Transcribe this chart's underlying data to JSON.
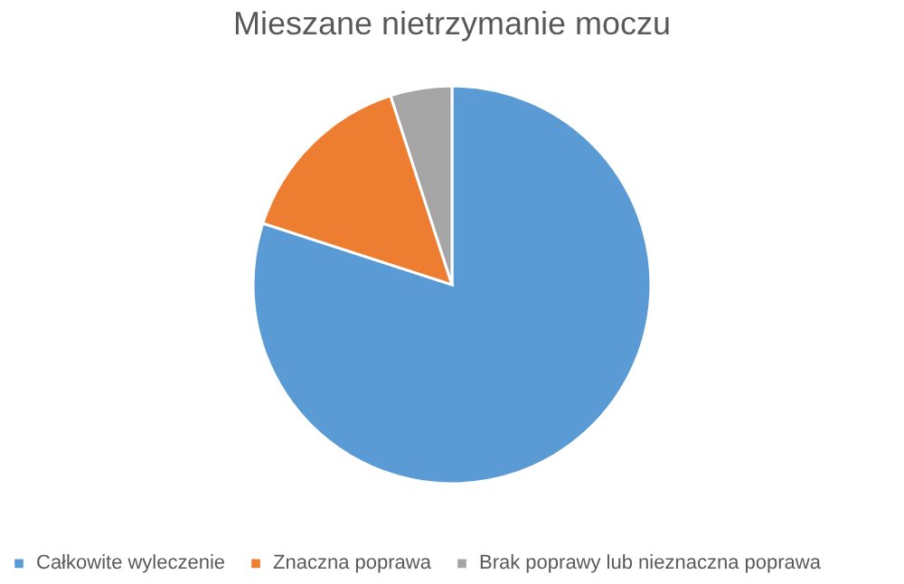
{
  "chart_data": {
    "type": "pie",
    "title": "Mieszane nietrzymanie moczu",
    "categories": [
      "Całkowite wyleczenie",
      "Znaczna poprawa",
      "Brak poprawy lub nieznaczna poprawa"
    ],
    "values": [
      80,
      15,
      5
    ],
    "colors": [
      "#5b9bd5",
      "#ed7d31",
      "#a5a5a5"
    ],
    "legend": "bottom"
  }
}
